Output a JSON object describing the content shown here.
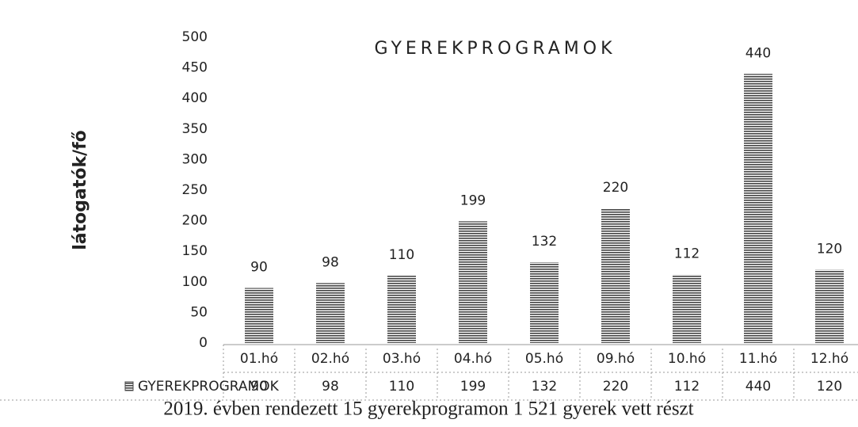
{
  "chart_data": {
    "type": "bar",
    "title": "GYEREKPROGRAMOK",
    "y_label": "látogatók/fő",
    "categories": [
      "01.hó",
      "02.hó",
      "03.hó",
      "04.hó",
      "05.hó",
      "09.hó",
      "10.hó",
      "11.hó",
      "12.hó"
    ],
    "series": [
      {
        "name": "GYEREKPROGRAMOK",
        "color": "#444444",
        "values": [
          90,
          98,
          110,
          199,
          132,
          220,
          112,
          440,
          120
        ]
      }
    ],
    "ylim": [
      0,
      500
    ],
    "yticks": [
      0,
      50,
      100,
      150,
      200,
      250,
      300,
      350,
      400,
      450,
      500
    ],
    "grid": false,
    "caption": "2019. évben rendezett 15 gyerekprogramon 1 521 gyerek vett részt"
  }
}
